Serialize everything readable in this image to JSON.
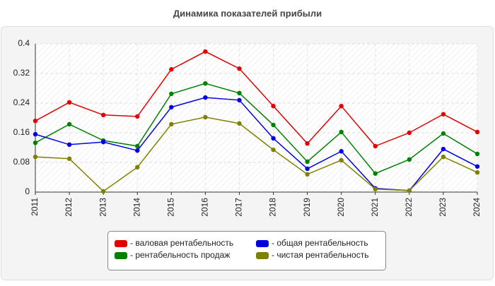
{
  "chart_data": {
    "type": "line",
    "title": "Динамика показателей прибыли",
    "categories": [
      "2011",
      "2012",
      "2013",
      "2014",
      "2015",
      "2016",
      "2017",
      "2018",
      "2019",
      "2020",
      "2021",
      "2022",
      "2023",
      "2024"
    ],
    "series": [
      {
        "name": "- валовая рентабельность",
        "color": "#e00000",
        "values": [
          0.192,
          0.242,
          0.208,
          0.204,
          0.331,
          0.379,
          0.333,
          0.232,
          0.131,
          0.232,
          0.124,
          0.16,
          0.21,
          0.162
        ]
      },
      {
        "name": "- общая рентабельность",
        "color": "#0000e0",
        "values": [
          0.156,
          0.128,
          0.135,
          0.112,
          0.229,
          0.255,
          0.248,
          0.145,
          0.063,
          0.11,
          0.01,
          0.004,
          0.116,
          0.069
        ]
      },
      {
        "name": "- рентабельность продаж",
        "color": "#008000",
        "values": [
          0.133,
          0.183,
          0.139,
          0.124,
          0.265,
          0.293,
          0.267,
          0.181,
          0.082,
          0.162,
          0.05,
          0.088,
          0.158,
          0.103
        ]
      },
      {
        "name": "- чистая рентабельность",
        "color": "#808000",
        "values": [
          0.095,
          0.09,
          0.002,
          0.067,
          0.183,
          0.202,
          0.185,
          0.114,
          0.048,
          0.086,
          0.008,
          0.004,
          0.095,
          0.053
        ]
      }
    ],
    "ylim": [
      0,
      0.4
    ],
    "yticks": [
      0,
      0.08,
      0.16,
      0.24,
      0.32,
      0.4
    ],
    "grid": true
  }
}
